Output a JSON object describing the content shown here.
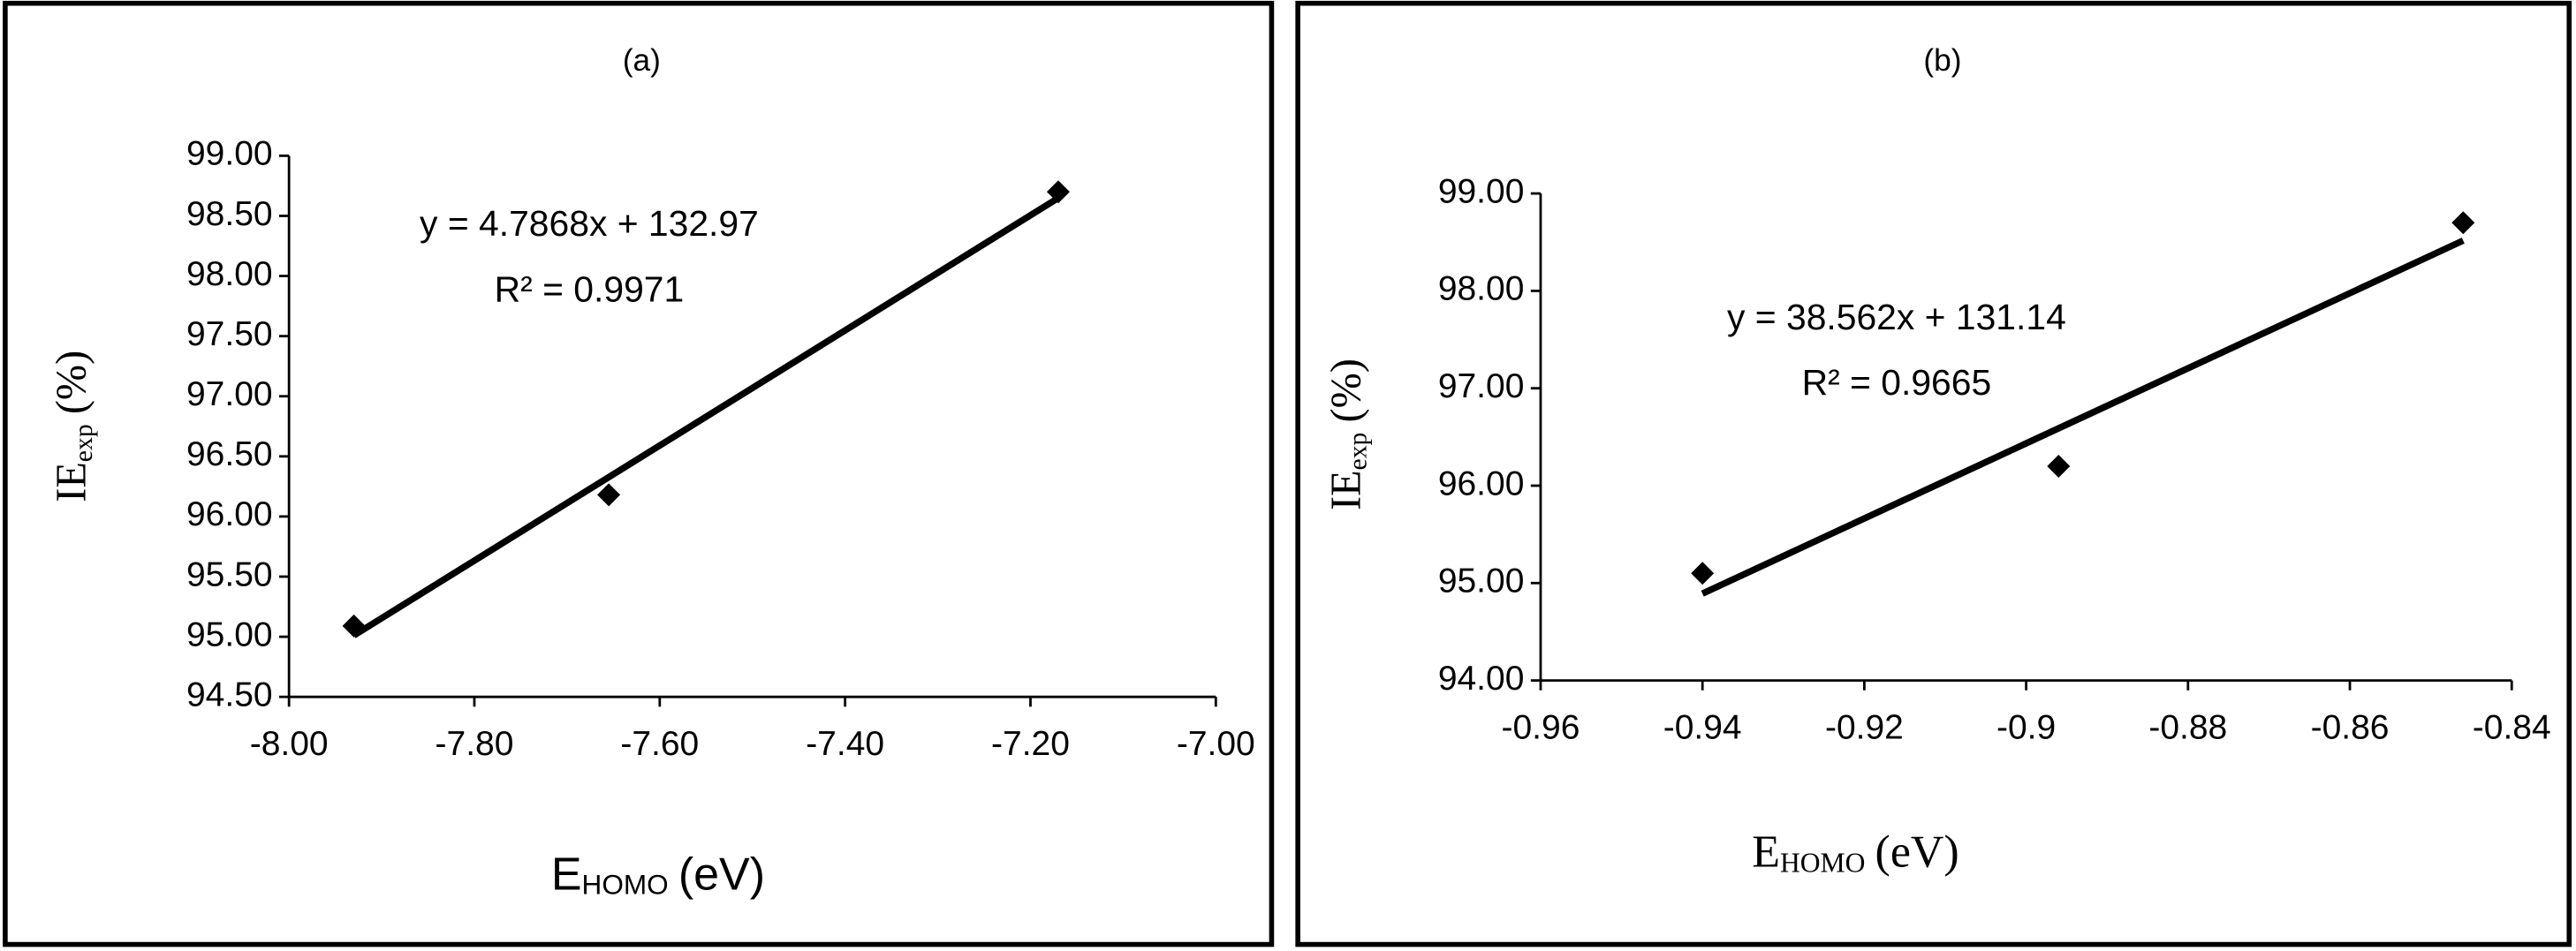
{
  "chart_data": [
    {
      "type": "scatter",
      "title": "(a)",
      "xlabel": {
        "main": "E",
        "sub": "HOMO",
        "unit": "(eV)"
      },
      "ylabel": {
        "main": "IE",
        "sub": "exp",
        "unit": "(%)"
      },
      "x": [
        -7.93,
        -7.655,
        -7.17
      ],
      "values": [
        95.09,
        96.18,
        98.7
      ],
      "color": "#000000",
      "xlim": [
        -8,
        -7
      ],
      "xticks": [
        {
          "value": -8,
          "label": "-8.00"
        },
        {
          "value": -7.8,
          "label": "-7.80"
        },
        {
          "value": -7.6,
          "label": "-7.60"
        },
        {
          "value": -7.4,
          "label": "-7.40"
        },
        {
          "value": -7.2,
          "label": "-7.20"
        },
        {
          "value": -7,
          "label": "-7.00"
        }
      ],
      "ylim": [
        94.5,
        99
      ],
      "yticks": [
        {
          "value": 94.5,
          "label": "94.50"
        },
        {
          "value": 95,
          "label": "95.00"
        },
        {
          "value": 95.5,
          "label": "95.50"
        },
        {
          "value": 96,
          "label": "96.00"
        },
        {
          "value": 96.5,
          "label": "96.50"
        },
        {
          "value": 97,
          "label": "97.00"
        },
        {
          "value": 97.5,
          "label": "97.50"
        },
        {
          "value": 98,
          "label": "98.00"
        },
        {
          "value": 98.5,
          "label": "98.50"
        },
        {
          "value": 99,
          "label": "99.00"
        }
      ],
      "trendline": {
        "slope": 4.7868,
        "intercept": 132.97,
        "equation": "y = 4.7868x + 132.97",
        "r_squared": "R² = 0.9971"
      },
      "grid": false
    },
    {
      "type": "scatter",
      "title": "(b)",
      "xlabel": {
        "main": "E",
        "sub": "HOMO",
        "unit": "(eV)"
      },
      "ylabel": {
        "main": "IE",
        "sub": "exp",
        "unit": "(%)"
      },
      "x": [
        -0.94,
        -0.896,
        -0.846
      ],
      "values": [
        95.1,
        96.2,
        98.7
      ],
      "color": "#000000",
      "xlim": [
        -0.96,
        -0.84
      ],
      "xticks": [
        -0.96,
        -0.94,
        -0.92,
        -0.9,
        -0.88,
        -0.86,
        -0.84
      ],
      "ylim": [
        94,
        99
      ],
      "yticks": [
        {
          "value": 94,
          "label": "94.00"
        },
        {
          "value": 95,
          "label": "95.00"
        },
        {
          "value": 96,
          "label": "96.00"
        },
        {
          "value": 97,
          "label": "97.00"
        },
        {
          "value": 98,
          "label": "98.00"
        },
        {
          "value": 99,
          "label": "99.00"
        }
      ],
      "trendline": {
        "slope": 38.562,
        "intercept": 131.14,
        "equation": "y = 38.562x + 131.14",
        "r_squared": "R² = 0.9665"
      },
      "grid": false
    }
  ]
}
